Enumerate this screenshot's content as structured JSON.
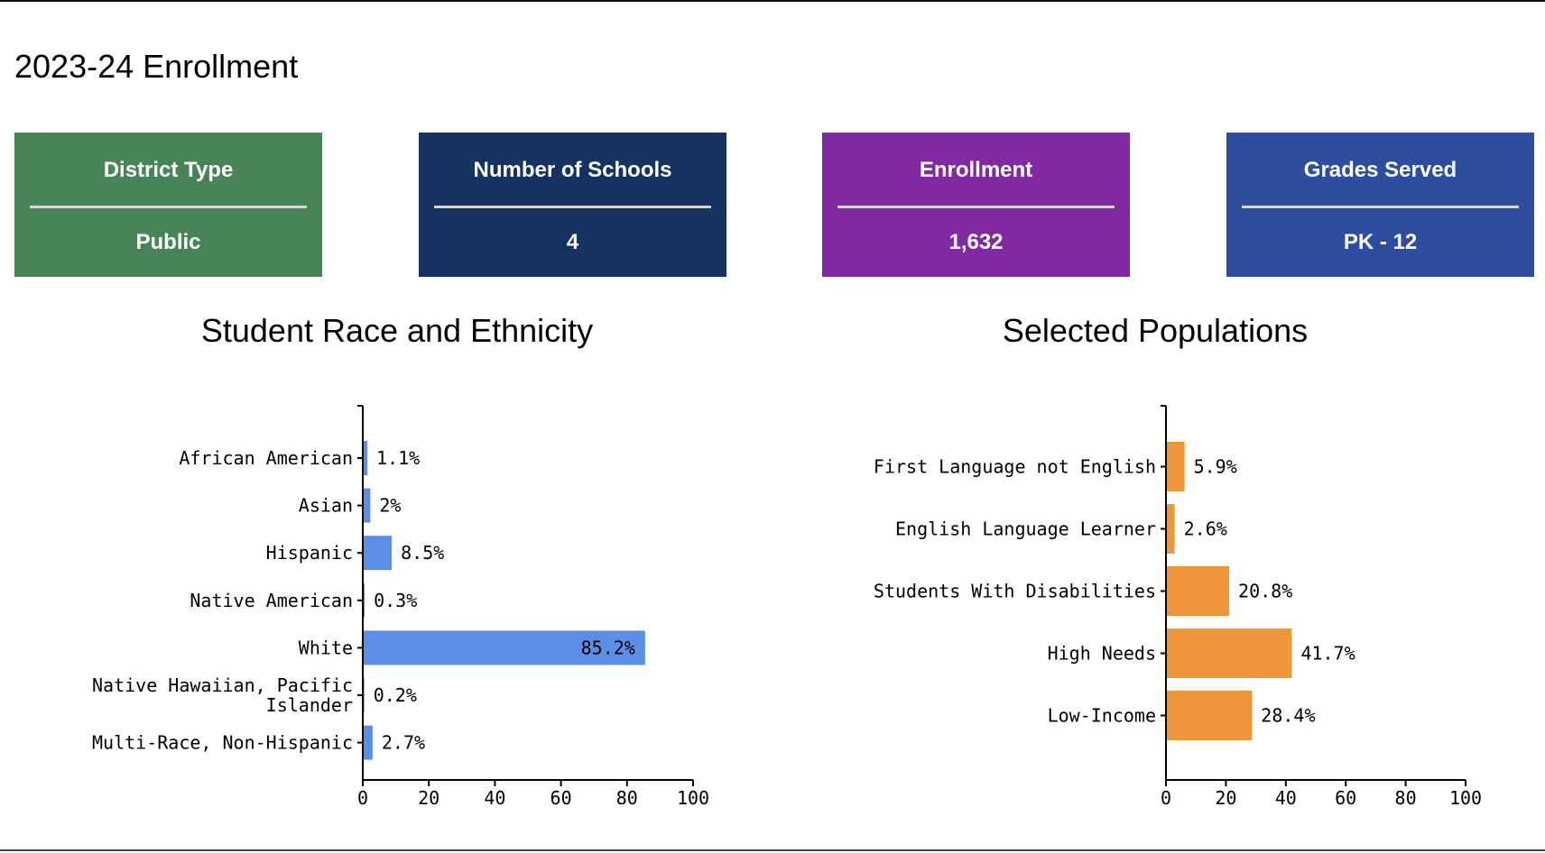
{
  "page": {
    "title": "2023-24 Enrollment"
  },
  "cards": [
    {
      "label": "District Type",
      "value": "Public",
      "color": "#478558"
    },
    {
      "label": "Number of Schools",
      "value": "4",
      "color": "#153261"
    },
    {
      "label": "Enrollment",
      "value": "1,632",
      "color": "#8129a0"
    },
    {
      "label": "Grades Served",
      "value": "PK - 12",
      "color": "#2e4d9f"
    }
  ],
  "chart_data": [
    {
      "type": "bar",
      "orientation": "horizontal",
      "title": "Student Race and Ethnicity",
      "categories": [
        "African American",
        "Asian",
        "Hispanic",
        "Native American",
        "White",
        "Native Hawaiian, Pacific Islander",
        "Multi-Race, Non-Hispanic"
      ],
      "category_lines": [
        [
          "African American"
        ],
        [
          "Asian"
        ],
        [
          "Hispanic"
        ],
        [
          "Native American"
        ],
        [
          "White"
        ],
        [
          "Native Hawaiian, Pacific",
          "Islander"
        ],
        [
          "Multi-Race, Non-Hispanic"
        ]
      ],
      "values": [
        1.1,
        2,
        8.5,
        0.3,
        85.2,
        0.2,
        2.7
      ],
      "labels": [
        "1.1%",
        "2%",
        "8.5%",
        "0.3%",
        "85.2%",
        "0.2%",
        "2.7%"
      ],
      "xlim": [
        0,
        100
      ],
      "xticks": [
        0,
        20,
        40,
        60,
        80,
        100
      ],
      "color": "#5b8ee6",
      "grid": false
    },
    {
      "type": "bar",
      "orientation": "horizontal",
      "title": "Selected Populations",
      "categories": [
        "First Language not English",
        "English Language Learner",
        "Students With Disabilities",
        "High Needs",
        "Low-Income"
      ],
      "category_lines": [
        [
          "First Language not English"
        ],
        [
          "English Language Learner"
        ],
        [
          "Students With Disabilities"
        ],
        [
          "High Needs"
        ],
        [
          "Low-Income"
        ]
      ],
      "values": [
        5.9,
        2.6,
        20.8,
        41.7,
        28.4
      ],
      "labels": [
        "5.9%",
        "2.6%",
        "20.8%",
        "41.7%",
        "28.4%"
      ],
      "xlim": [
        0,
        100
      ],
      "xticks": [
        0,
        20,
        40,
        60,
        80,
        100
      ],
      "color": "#f0953a",
      "grid": false
    }
  ]
}
